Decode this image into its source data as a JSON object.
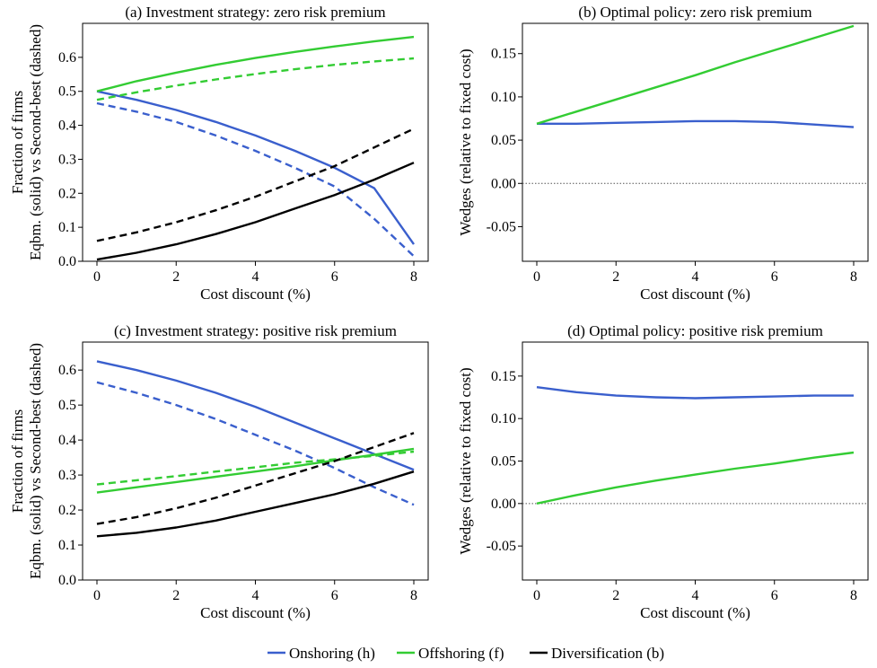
{
  "colors": {
    "onshoring": "#3a5fcd",
    "offshoring": "#33cc33",
    "diversification": "#000000",
    "frame": "#000000",
    "zero_line": "#555555"
  },
  "legend": {
    "position": "bottom-center",
    "items": [
      {
        "key": "onshoring",
        "label": "Onshoring (h)"
      },
      {
        "key": "offshoring",
        "label": "Offshoring (f)"
      },
      {
        "key": "diversification",
        "label": "Diversification (b)"
      }
    ]
  },
  "chart_data": [
    {
      "type": "line",
      "title": "(a) Investment strategy: zero risk premium",
      "xlabel": "Cost discount (%)",
      "ylabel": [
        "Fraction of firms",
        "Eqbm. (solid) vs Second-best (dashed)"
      ],
      "xlim": [
        0,
        8
      ],
      "ylim": [
        0,
        0.7
      ],
      "xticks": [
        0,
        2,
        4,
        6,
        8
      ],
      "xticklabels": [
        "0",
        "2",
        "4",
        "6",
        "8"
      ],
      "yticks": [
        0,
        0.1,
        0.2,
        0.3,
        0.4,
        0.5,
        0.6
      ],
      "yticklabels": [
        "0.0",
        "0.1",
        "0.2",
        "0.3",
        "0.4",
        "0.5",
        "0.6"
      ],
      "x": [
        0,
        1,
        2,
        3,
        4,
        5,
        6,
        7,
        8
      ],
      "series": [
        {
          "key": "onshoring",
          "style": "solid",
          "values": [
            0.5,
            0.475,
            0.445,
            0.41,
            0.37,
            0.325,
            0.275,
            0.215,
            0.05
          ]
        },
        {
          "key": "onshoring",
          "style": "dashed",
          "values": [
            0.465,
            0.44,
            0.41,
            0.37,
            0.325,
            0.275,
            0.22,
            0.125,
            0.015
          ]
        },
        {
          "key": "offshoring",
          "style": "solid",
          "values": [
            0.5,
            0.53,
            0.555,
            0.578,
            0.598,
            0.616,
            0.632,
            0.647,
            0.66
          ]
        },
        {
          "key": "offshoring",
          "style": "dashed",
          "values": [
            0.475,
            0.497,
            0.517,
            0.535,
            0.551,
            0.565,
            0.578,
            0.588,
            0.597
          ]
        },
        {
          "key": "diversification",
          "style": "solid",
          "values": [
            0.005,
            0.025,
            0.05,
            0.08,
            0.115,
            0.155,
            0.195,
            0.24,
            0.29
          ]
        },
        {
          "key": "diversification",
          "style": "dashed",
          "values": [
            0.06,
            0.085,
            0.115,
            0.15,
            0.19,
            0.235,
            0.28,
            0.335,
            0.39
          ]
        }
      ]
    },
    {
      "type": "line",
      "title": "(b) Optimal policy: zero risk premium",
      "xlabel": "Cost discount (%)",
      "ylabel": [
        "Wedges (relative to fixed cost)"
      ],
      "xlim": [
        0,
        8
      ],
      "ylim": [
        -0.09,
        0.185
      ],
      "zero_line": true,
      "xticks": [
        0,
        2,
        4,
        6,
        8
      ],
      "xticklabels": [
        "0",
        "2",
        "4",
        "6",
        "8"
      ],
      "yticks": [
        -0.05,
        0,
        0.05,
        0.1,
        0.15
      ],
      "yticklabels": [
        "-0.05",
        "0.00",
        "0.05",
        "0.10",
        "0.15"
      ],
      "x": [
        0,
        1,
        2,
        3,
        4,
        5,
        6,
        7,
        8
      ],
      "series": [
        {
          "key": "onshoring",
          "style": "solid",
          "values": [
            0.069,
            0.069,
            0.07,
            0.071,
            0.072,
            0.072,
            0.071,
            0.068,
            0.065
          ]
        },
        {
          "key": "offshoring",
          "style": "solid",
          "values": [
            0.069,
            0.083,
            0.097,
            0.111,
            0.125,
            0.14,
            0.154,
            0.168,
            0.182
          ]
        }
      ]
    },
    {
      "type": "line",
      "title": "(c) Investment strategy: positive risk premium",
      "xlabel": "Cost discount (%)",
      "ylabel": [
        "Fraction of firms",
        "Eqbm. (solid) vs Second-best (dashed)"
      ],
      "xlim": [
        0,
        8
      ],
      "ylim": [
        0,
        0.68
      ],
      "xticks": [
        0,
        2,
        4,
        6,
        8
      ],
      "xticklabels": [
        "0",
        "2",
        "4",
        "6",
        "8"
      ],
      "yticks": [
        0,
        0.1,
        0.2,
        0.3,
        0.4,
        0.5,
        0.6
      ],
      "yticklabels": [
        "0.0",
        "0.1",
        "0.2",
        "0.3",
        "0.4",
        "0.5",
        "0.6"
      ],
      "x": [
        0,
        1,
        2,
        3,
        4,
        5,
        6,
        7,
        8
      ],
      "series": [
        {
          "key": "onshoring",
          "style": "solid",
          "values": [
            0.625,
            0.6,
            0.57,
            0.535,
            0.495,
            0.45,
            0.405,
            0.36,
            0.315
          ]
        },
        {
          "key": "onshoring",
          "style": "dashed",
          "values": [
            0.565,
            0.535,
            0.5,
            0.46,
            0.415,
            0.37,
            0.32,
            0.265,
            0.215
          ]
        },
        {
          "key": "offshoring",
          "style": "solid",
          "values": [
            0.25,
            0.265,
            0.28,
            0.295,
            0.31,
            0.325,
            0.342,
            0.358,
            0.375
          ]
        },
        {
          "key": "offshoring",
          "style": "dashed",
          "values": [
            0.273,
            0.285,
            0.297,
            0.31,
            0.322,
            0.335,
            0.345,
            0.355,
            0.367
          ]
        },
        {
          "key": "diversification",
          "style": "solid",
          "values": [
            0.125,
            0.135,
            0.15,
            0.17,
            0.195,
            0.22,
            0.245,
            0.275,
            0.31
          ]
        },
        {
          "key": "diversification",
          "style": "dashed",
          "values": [
            0.16,
            0.18,
            0.205,
            0.235,
            0.27,
            0.305,
            0.34,
            0.38,
            0.42
          ]
        }
      ]
    },
    {
      "type": "line",
      "title": "(d) Optimal policy: positive risk premium",
      "xlabel": "Cost discount (%)",
      "ylabel": [
        "Wedges (relative to fixed cost)"
      ],
      "xlim": [
        0,
        8
      ],
      "ylim": [
        -0.09,
        0.19
      ],
      "zero_line": true,
      "xticks": [
        0,
        2,
        4,
        6,
        8
      ],
      "xticklabels": [
        "0",
        "2",
        "4",
        "6",
        "8"
      ],
      "yticks": [
        -0.05,
        0,
        0.05,
        0.1,
        0.15
      ],
      "yticklabels": [
        "-0.05",
        "0.00",
        "0.05",
        "0.10",
        "0.15"
      ],
      "x": [
        0,
        1,
        2,
        3,
        4,
        5,
        6,
        7,
        8
      ],
      "series": [
        {
          "key": "onshoring",
          "style": "solid",
          "values": [
            0.137,
            0.131,
            0.127,
            0.125,
            0.124,
            0.125,
            0.126,
            0.127,
            0.127
          ]
        },
        {
          "key": "offshoring",
          "style": "solid",
          "values": [
            0.0,
            0.01,
            0.019,
            0.027,
            0.034,
            0.041,
            0.047,
            0.054,
            0.06
          ]
        }
      ]
    }
  ]
}
